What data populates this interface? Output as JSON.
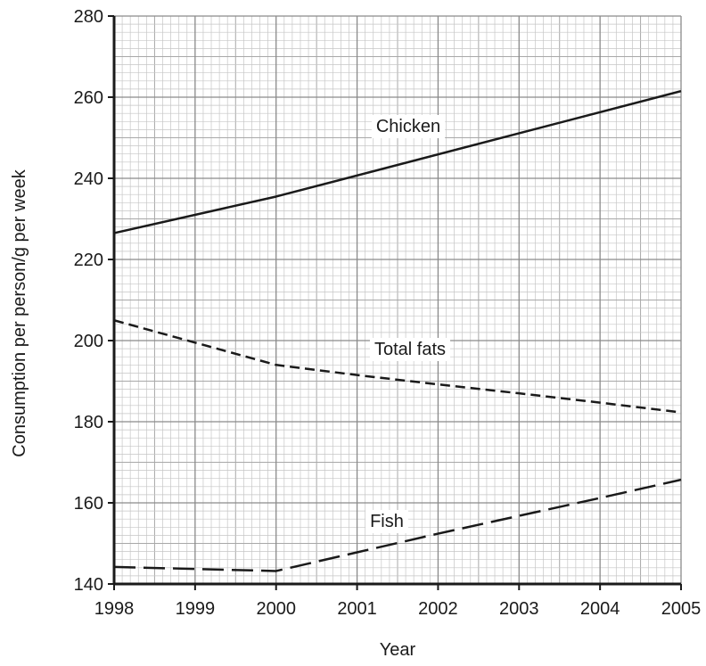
{
  "chart_data": {
    "type": "line",
    "xlabel": "Year",
    "ylabel": "Consumption per person/g per week",
    "xlim": [
      1998,
      2005
    ],
    "ylim": [
      140,
      280
    ],
    "x_ticks": [
      "1998",
      "1999",
      "2000",
      "2001",
      "2002",
      "2003",
      "2004",
      "2005"
    ],
    "y_ticks": [
      "140",
      "160",
      "180",
      "200",
      "220",
      "240",
      "260",
      "280"
    ],
    "grid": true,
    "grid_minor_per_major": {
      "x": 10,
      "y": 10
    },
    "series": [
      {
        "name": "Chicken",
        "style": "solid",
        "x": [
          1998,
          2000,
          2005
        ],
        "y": [
          226.5,
          235.5,
          261.5
        ]
      },
      {
        "name": "Total fats",
        "style": "short-dash",
        "x": [
          1998,
          1999,
          2000,
          2001,
          2002,
          2003,
          2004,
          2005
        ],
        "y": [
          205,
          199.5,
          194,
          191.5,
          189.2,
          187,
          184.7,
          182.3
        ]
      },
      {
        "name": "Fish",
        "style": "long-dash",
        "x": [
          1998,
          2000,
          2001,
          2002,
          2003,
          2004,
          2005
        ],
        "y": [
          144.2,
          143.2,
          147.8,
          152.4,
          156.8,
          161.2,
          165.7
        ]
      }
    ]
  }
}
